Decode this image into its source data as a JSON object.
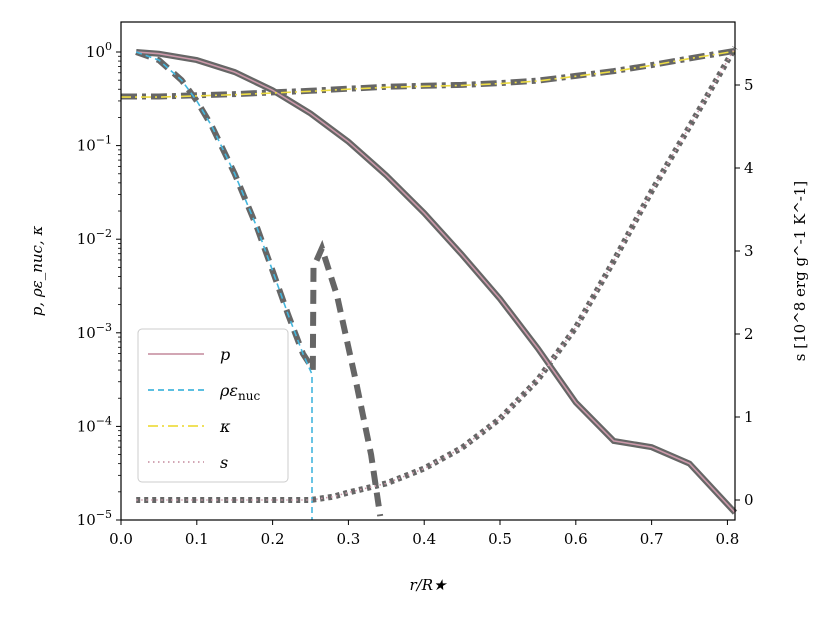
{
  "chart_data": {
    "type": "line",
    "title": "",
    "xlabel": "r/R★",
    "ylabel_left": "p, ρε_nuc, κ",
    "ylabel_right": "s [10^8 erg g^-1 K^-1]",
    "xlim": [
      0.0,
      0.81
    ],
    "ylim_left_log10": [
      -5,
      0.3
    ],
    "ylim_right": [
      -0.25,
      5.75
    ],
    "x_ticks": [
      {
        "v": 0.0,
        "label": "0.0"
      },
      {
        "v": 0.1,
        "label": "0.1"
      },
      {
        "v": 0.2,
        "label": "0.2"
      },
      {
        "v": 0.3,
        "label": "0.3"
      },
      {
        "v": 0.4,
        "label": "0.4"
      },
      {
        "v": 0.5,
        "label": "0.5"
      },
      {
        "v": 0.6,
        "label": "0.6"
      },
      {
        "v": 0.7,
        "label": "0.7"
      },
      {
        "v": 0.8,
        "label": "0.8"
      }
    ],
    "y_left_ticks": [
      {
        "exp": 0,
        "base": "10",
        "sup": "0"
      },
      {
        "exp": -1,
        "base": "10",
        "sup": "−1"
      },
      {
        "exp": -2,
        "base": "10",
        "sup": "−2"
      },
      {
        "exp": -3,
        "base": "10",
        "sup": "−3"
      },
      {
        "exp": -4,
        "base": "10",
        "sup": "−4"
      },
      {
        "exp": -5,
        "base": "10",
        "sup": "−5"
      }
    ],
    "y_right_ticks": [
      {
        "v": 0,
        "label": "0"
      },
      {
        "v": 1,
        "label": "1"
      },
      {
        "v": 2,
        "label": "2"
      },
      {
        "v": 3,
        "label": "3"
      },
      {
        "v": 4,
        "label": "4"
      },
      {
        "v": 5,
        "label": "5"
      }
    ],
    "legend": {
      "location": "lower-left",
      "entries": [
        {
          "label": "p",
          "sub": "",
          "series": "p"
        },
        {
          "label": "ρε",
          "sub": "nuc",
          "series": "rho_eps_nuc"
        },
        {
          "label": "κ",
          "sub": "",
          "series": "kappa"
        },
        {
          "label": "s",
          "sub": "",
          "series": "s"
        }
      ]
    },
    "series": [
      {
        "name": "p",
        "axis": "left",
        "style": "solid",
        "color": "#cc99aa",
        "x": [
          0.02,
          0.05,
          0.1,
          0.15,
          0.2,
          0.25,
          0.3,
          0.35,
          0.4,
          0.45,
          0.5,
          0.55,
          0.6,
          0.65,
          0.7,
          0.75,
          0.81
        ],
        "y": [
          1.0,
          0.96,
          0.82,
          0.61,
          0.39,
          0.22,
          0.11,
          0.048,
          0.019,
          0.0068,
          0.0023,
          0.00068,
          0.00018,
          7e-05,
          6e-05,
          4e-05,
          1.2e-05
        ]
      },
      {
        "name": "rho_eps_nuc",
        "axis": "left",
        "style": "dashed",
        "color": "#44b6dd",
        "x": [
          0.02,
          0.05,
          0.08,
          0.1,
          0.12,
          0.15,
          0.18,
          0.2,
          0.22,
          0.24,
          0.252,
          0.252
        ],
        "y": [
          1.0,
          0.82,
          0.5,
          0.3,
          0.16,
          0.05,
          0.013,
          0.0046,
          0.0016,
          0.0006,
          0.00036,
          1e-05
        ]
      },
      {
        "name": "kappa",
        "axis": "left",
        "style": "dashdot",
        "color": "#eedd44",
        "x": [
          0.0,
          0.02,
          0.05,
          0.1,
          0.15,
          0.2,
          0.25,
          0.3,
          0.35,
          0.4,
          0.45,
          0.5,
          0.55,
          0.6,
          0.65,
          0.7,
          0.75,
          0.81
        ],
        "y": [
          0.33,
          0.33,
          0.33,
          0.34,
          0.35,
          0.365,
          0.38,
          0.4,
          0.42,
          0.43,
          0.44,
          0.46,
          0.49,
          0.55,
          0.62,
          0.72,
          0.85,
          1.02
        ]
      },
      {
        "name": "s",
        "axis": "right",
        "style": "dotted",
        "color": "#cc99aa",
        "x": [
          0.02,
          0.05,
          0.1,
          0.15,
          0.2,
          0.25,
          0.28,
          0.3,
          0.35,
          0.4,
          0.45,
          0.5,
          0.55,
          0.6,
          0.65,
          0.7,
          0.75,
          0.81
        ],
        "y": [
          0.0,
          0.0,
          0.0,
          0.0,
          0.0,
          0.0,
          0.04,
          0.09,
          0.2,
          0.38,
          0.63,
          0.98,
          1.45,
          2.08,
          2.88,
          3.72,
          4.5,
          5.45
        ]
      },
      {
        "name": "reference_background",
        "axis": "left",
        "style": "thick-gray",
        "color": "#666666",
        "x": [
          0.02,
          0.05,
          0.1,
          0.15,
          0.2,
          0.25,
          0.3,
          0.35,
          0.4,
          0.45,
          0.5,
          0.55,
          0.6,
          0.65,
          0.7,
          0.75,
          0.81
        ],
        "y": [
          1.0,
          0.96,
          0.82,
          0.61,
          0.39,
          0.22,
          0.11,
          0.048,
          0.019,
          0.0068,
          0.0023,
          0.00068,
          0.00018,
          7e-05,
          6e-05,
          4e-05,
          1.2e-05
        ]
      }
    ],
    "reference": {
      "color": "#666666",
      "p": {
        "x": [
          0.02,
          0.05,
          0.1,
          0.15,
          0.2,
          0.25,
          0.3,
          0.35,
          0.4,
          0.45,
          0.5,
          0.55,
          0.6,
          0.65,
          0.7,
          0.75,
          0.81
        ],
        "y": [
          1.0,
          0.96,
          0.82,
          0.61,
          0.39,
          0.22,
          0.11,
          0.048,
          0.019,
          0.0068,
          0.0023,
          0.00068,
          0.00018,
          7e-05,
          6e-05,
          4e-05,
          1.2e-05
        ]
      },
      "rho_eps_nuc": {
        "x": [
          0.02,
          0.05,
          0.08,
          0.1,
          0.12,
          0.15,
          0.18,
          0.2,
          0.22,
          0.24,
          0.25,
          0.253,
          0.254,
          0.265,
          0.285,
          0.31,
          0.33,
          0.342
        ],
        "y": [
          1.0,
          0.82,
          0.5,
          0.3,
          0.16,
          0.05,
          0.013,
          0.0046,
          0.0016,
          0.0006,
          0.00045,
          0.0004,
          0.005,
          0.008,
          0.0025,
          0.0003,
          5e-05,
          1.1e-05
        ]
      },
      "kappa": {
        "x": [
          0.0,
          0.05,
          0.1,
          0.15,
          0.2,
          0.25,
          0.3,
          0.35,
          0.4,
          0.45,
          0.5,
          0.55,
          0.6,
          0.65,
          0.7,
          0.75,
          0.81
        ],
        "y": [
          0.335,
          0.335,
          0.345,
          0.355,
          0.37,
          0.385,
          0.405,
          0.425,
          0.435,
          0.445,
          0.465,
          0.495,
          0.555,
          0.625,
          0.725,
          0.855,
          1.03
        ]
      },
      "s": {
        "x": [
          0.02,
          0.05,
          0.1,
          0.15,
          0.2,
          0.25,
          0.28,
          0.3,
          0.35,
          0.4,
          0.45,
          0.5,
          0.55,
          0.6,
          0.65,
          0.7,
          0.75,
          0.81
        ],
        "y": [
          0.0,
          0.0,
          0.0,
          0.0,
          0.0,
          0.0,
          0.04,
          0.09,
          0.2,
          0.38,
          0.63,
          0.98,
          1.45,
          2.08,
          2.88,
          3.72,
          4.5,
          5.45
        ]
      }
    }
  }
}
